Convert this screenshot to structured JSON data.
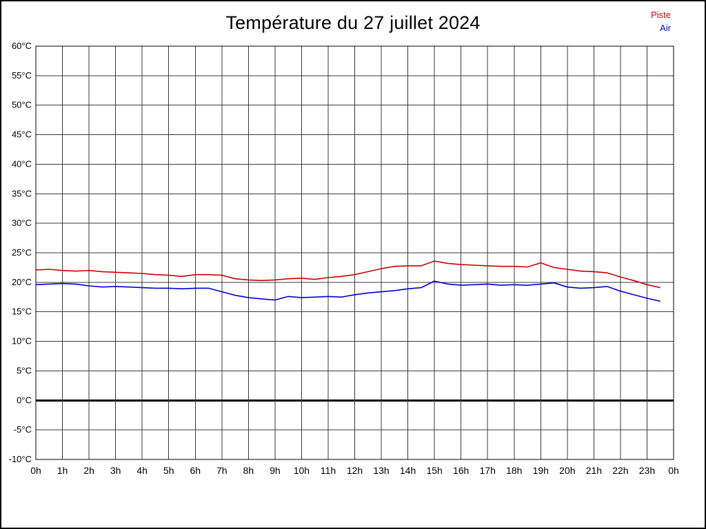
{
  "title": "Température du 27 juillet 2024",
  "legend": {
    "items": [
      {
        "label": "Piste",
        "color": "#cc0000"
      },
      {
        "label": "Air",
        "color": "#0000cc"
      }
    ]
  },
  "chart_data": {
    "type": "line",
    "title": "Température du 27 juillet 2024",
    "xlabel": "",
    "ylabel": "",
    "xlim": [
      0,
      24
    ],
    "ylim": [
      -10,
      60
    ],
    "y_tick_step": 5,
    "y_tick_labels": [
      "60°C",
      "55°C",
      "50°C",
      "45°C",
      "40°C",
      "35°C",
      "30°C",
      "25°C",
      "20°C",
      "15°C",
      "10°C",
      "5°C",
      "0°C",
      "-5°C",
      "-10°C"
    ],
    "x_tick_labels": [
      "0h",
      "1h",
      "2h",
      "3h",
      "4h",
      "5h",
      "6h",
      "7h",
      "8h",
      "9h",
      "10h",
      "11h",
      "12h",
      "13h",
      "14h",
      "15h",
      "16h",
      "17h",
      "18h",
      "19h",
      "20h",
      "21h",
      "22h",
      "23h",
      "0h"
    ],
    "grid": true,
    "grid_color": "#3a3a3a",
    "zero_line": {
      "value": 0,
      "color": "#000000",
      "width": 3
    },
    "legend_position": "top-right",
    "x": [
      0,
      0.5,
      1,
      1.5,
      2,
      2.5,
      3,
      3.5,
      4,
      4.5,
      5,
      5.5,
      6,
      6.5,
      7,
      7.5,
      8,
      8.5,
      9,
      9.5,
      10,
      10.5,
      11,
      11.5,
      12,
      12.5,
      13,
      13.5,
      14,
      14.5,
      15,
      15.5,
      16,
      16.5,
      17,
      17.5,
      18,
      18.5,
      19,
      19.5,
      20,
      20.5,
      21,
      21.5,
      22,
      22.5,
      23,
      23.5
    ],
    "series": [
      {
        "name": "Piste",
        "color": "#cc0000",
        "values": [
          22.1,
          22.2,
          22.0,
          21.9,
          22.0,
          21.8,
          21.7,
          21.6,
          21.5,
          21.3,
          21.2,
          21.0,
          21.3,
          21.3,
          21.2,
          20.6,
          20.4,
          20.3,
          20.4,
          20.6,
          20.7,
          20.5,
          20.8,
          21.0,
          21.3,
          21.8,
          22.3,
          22.7,
          22.8,
          22.8,
          23.6,
          23.2,
          23.0,
          22.9,
          22.8,
          22.7,
          22.7,
          22.6,
          23.3,
          22.5,
          22.2,
          21.9,
          21.8,
          21.6,
          20.9,
          20.3,
          19.6,
          19.1
        ]
      },
      {
        "name": "Air",
        "color": "#0000cc",
        "values": [
          19.6,
          19.7,
          19.8,
          19.7,
          19.4,
          19.2,
          19.3,
          19.2,
          19.1,
          19.0,
          19.0,
          18.9,
          19.0,
          19.0,
          18.4,
          17.8,
          17.4,
          17.2,
          17.0,
          17.6,
          17.4,
          17.5,
          17.6,
          17.5,
          17.9,
          18.2,
          18.4,
          18.6,
          18.9,
          19.1,
          20.2,
          19.7,
          19.5,
          19.6,
          19.7,
          19.5,
          19.6,
          19.5,
          19.7,
          19.9,
          19.2,
          19.0,
          19.1,
          19.3,
          18.5,
          17.9,
          17.3,
          16.8
        ]
      }
    ]
  }
}
